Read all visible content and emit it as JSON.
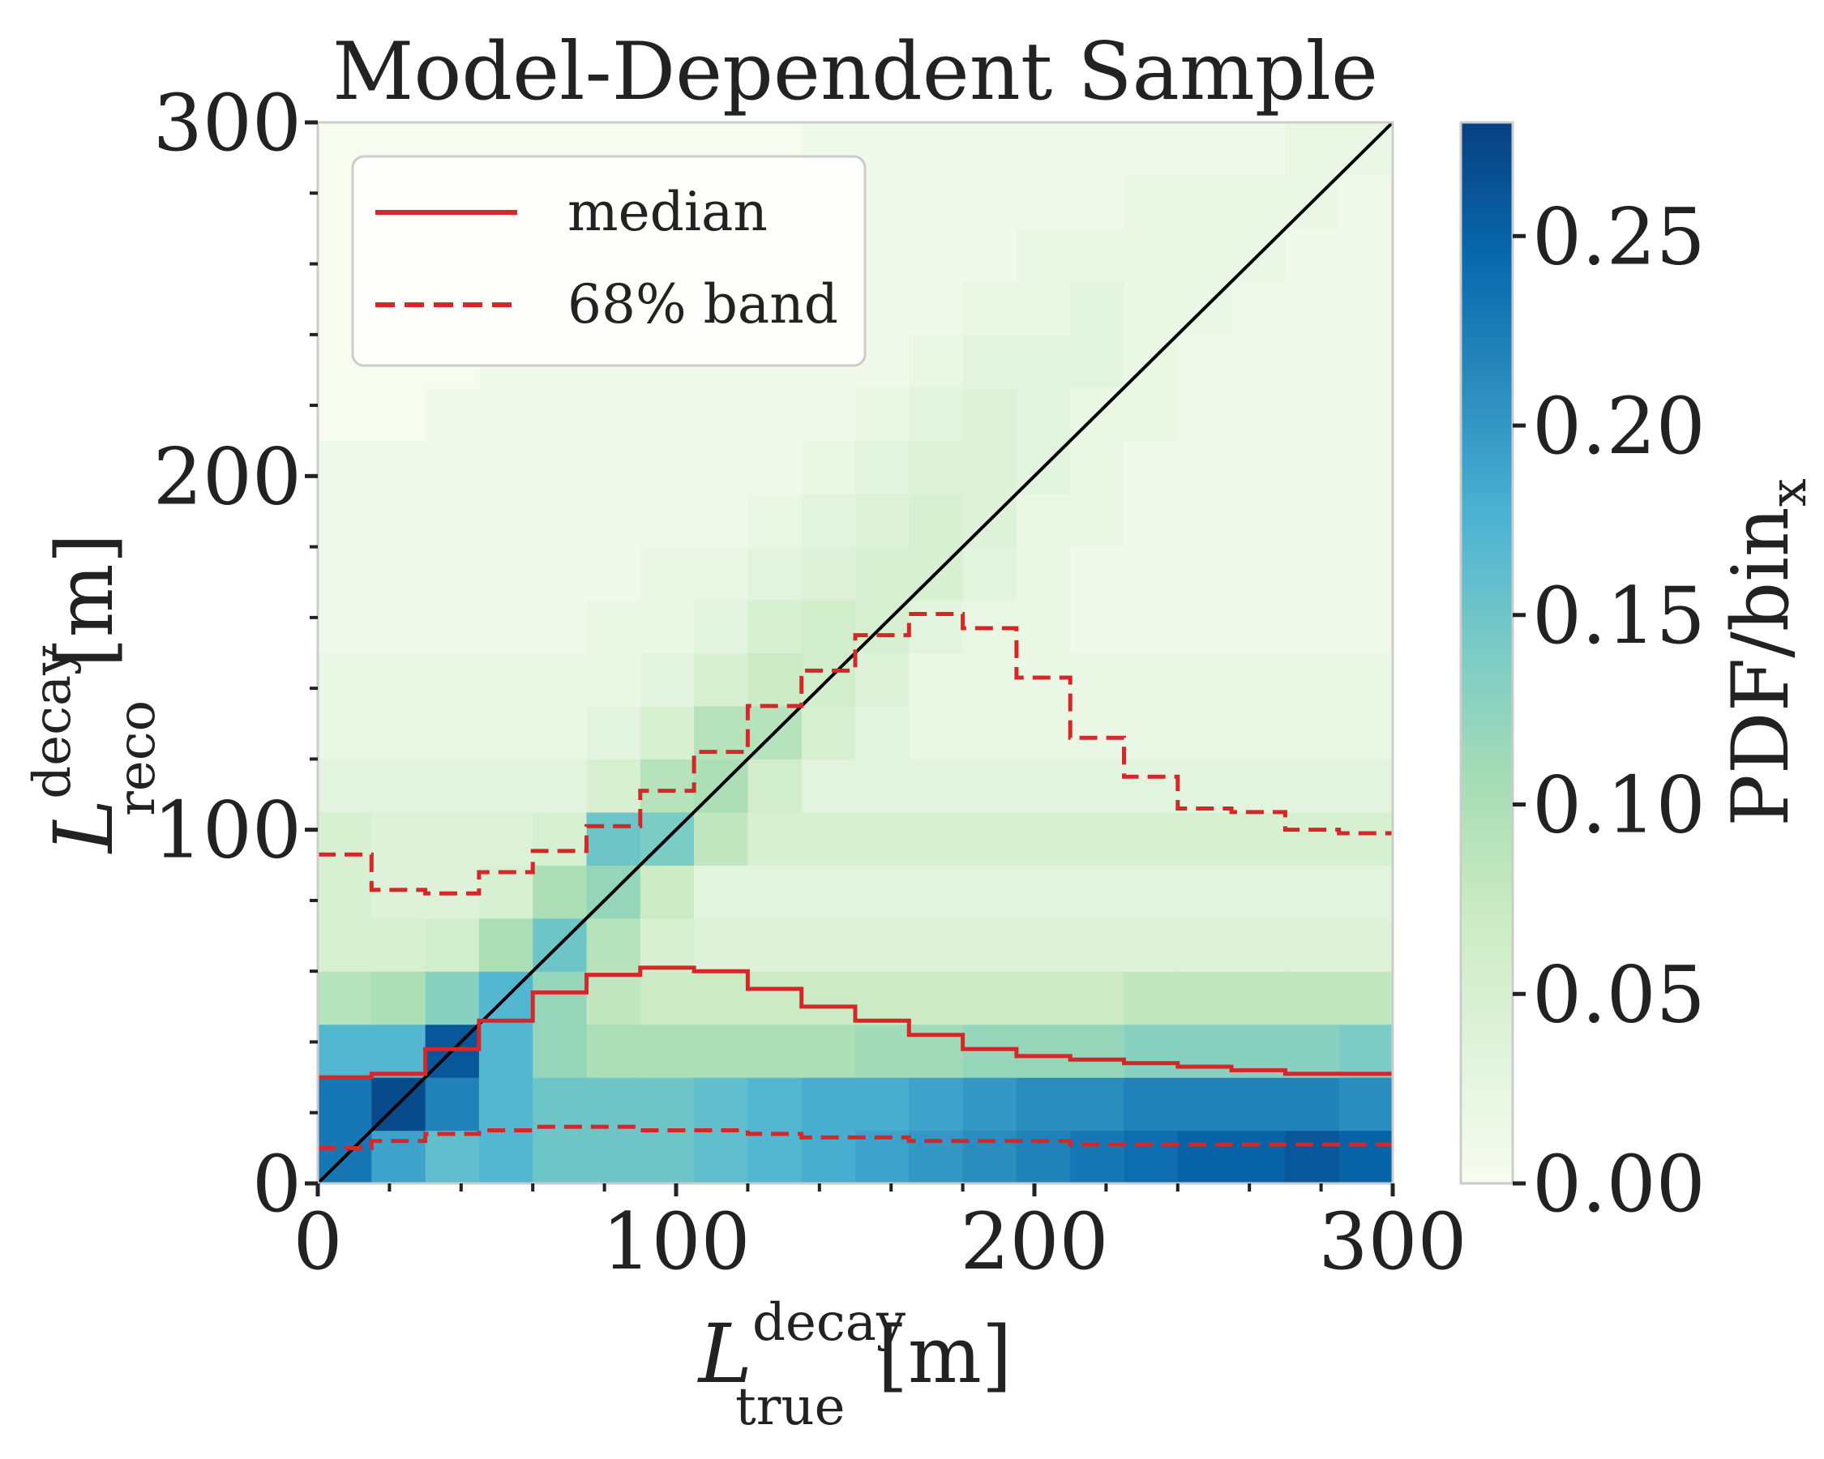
{
  "chart_data": {
    "type": "heatmap",
    "title": "Model-Dependent Sample",
    "xlabel": {
      "main": "L",
      "sup": "decay",
      "sub": "true",
      "unit": "[m]"
    },
    "ylabel": {
      "main": "L",
      "sup": "decay",
      "sub": "reco",
      "unit": "[m]"
    },
    "colorbar_label": {
      "main": "PDF/bin",
      "sub": "x"
    },
    "colormap": "GnBu",
    "xlim": [
      0,
      300
    ],
    "ylim": [
      0,
      300
    ],
    "clim": [
      0,
      0.28
    ],
    "x_ticks": [
      "0",
      "100",
      "200",
      "300"
    ],
    "y_ticks": [
      "0",
      "100",
      "200",
      "300"
    ],
    "colorbar_ticks": [
      "0.00",
      "0.05",
      "0.10",
      "0.15",
      "0.20",
      "0.25"
    ],
    "x_bin_edges": [
      0,
      15,
      30,
      45,
      60,
      75,
      90,
      105,
      120,
      135,
      150,
      165,
      180,
      195,
      210,
      225,
      240,
      255,
      270,
      285,
      300
    ],
    "y_bin_edges": [
      0,
      15,
      30,
      45,
      60,
      75,
      90,
      105,
      120,
      135,
      150,
      165,
      180,
      195,
      210,
      225,
      240,
      255,
      270,
      285,
      300
    ],
    "z": [
      [
        0.23,
        0.19,
        0.16,
        0.17,
        0.15,
        0.15,
        0.15,
        0.16,
        0.17,
        0.18,
        0.19,
        0.2,
        0.21,
        0.22,
        0.23,
        0.24,
        0.25,
        0.25,
        0.26,
        0.25
      ],
      [
        0.23,
        0.27,
        0.22,
        0.17,
        0.15,
        0.15,
        0.15,
        0.16,
        0.17,
        0.18,
        0.18,
        0.19,
        0.2,
        0.21,
        0.21,
        0.22,
        0.22,
        0.22,
        0.22,
        0.21
      ],
      [
        0.17,
        0.17,
        0.26,
        0.17,
        0.12,
        0.1,
        0.1,
        0.1,
        0.1,
        0.1,
        0.11,
        0.11,
        0.12,
        0.12,
        0.12,
        0.13,
        0.13,
        0.13,
        0.13,
        0.14
      ],
      [
        0.09,
        0.1,
        0.13,
        0.17,
        0.12,
        0.08,
        0.07,
        0.07,
        0.07,
        0.07,
        0.07,
        0.07,
        0.07,
        0.07,
        0.07,
        0.08,
        0.08,
        0.08,
        0.08,
        0.08
      ],
      [
        0.05,
        0.05,
        0.06,
        0.1,
        0.15,
        0.09,
        0.05,
        0.04,
        0.04,
        0.04,
        0.04,
        0.04,
        0.04,
        0.04,
        0.04,
        0.04,
        0.04,
        0.04,
        0.04,
        0.04
      ],
      [
        0.05,
        0.04,
        0.04,
        0.05,
        0.1,
        0.12,
        0.07,
        0.03,
        0.03,
        0.03,
        0.03,
        0.03,
        0.03,
        0.03,
        0.03,
        0.03,
        0.03,
        0.03,
        0.03,
        0.03
      ],
      [
        0.05,
        0.04,
        0.04,
        0.04,
        0.05,
        0.15,
        0.14,
        0.08,
        0.05,
        0.05,
        0.05,
        0.05,
        0.05,
        0.05,
        0.05,
        0.05,
        0.05,
        0.05,
        0.05,
        0.05
      ],
      [
        0.03,
        0.03,
        0.03,
        0.03,
        0.03,
        0.05,
        0.09,
        0.1,
        0.06,
        0.03,
        0.03,
        0.03,
        0.03,
        0.03,
        0.03,
        0.03,
        0.03,
        0.03,
        0.03,
        0.03
      ],
      [
        0.02,
        0.02,
        0.02,
        0.02,
        0.02,
        0.03,
        0.05,
        0.09,
        0.09,
        0.05,
        0.03,
        0.02,
        0.02,
        0.02,
        0.02,
        0.02,
        0.02,
        0.02,
        0.02,
        0.02
      ],
      [
        0.02,
        0.02,
        0.02,
        0.02,
        0.02,
        0.02,
        0.03,
        0.05,
        0.07,
        0.06,
        0.04,
        0.02,
        0.02,
        0.02,
        0.02,
        0.02,
        0.02,
        0.02,
        0.02,
        0.02
      ],
      [
        0.01,
        0.01,
        0.01,
        0.01,
        0.01,
        0.02,
        0.02,
        0.03,
        0.05,
        0.06,
        0.05,
        0.03,
        0.02,
        0.02,
        0.01,
        0.01,
        0.01,
        0.01,
        0.01,
        0.01
      ],
      [
        0.01,
        0.01,
        0.01,
        0.01,
        0.01,
        0.01,
        0.02,
        0.02,
        0.03,
        0.04,
        0.05,
        0.05,
        0.03,
        0.02,
        0.01,
        0.01,
        0.01,
        0.01,
        0.01,
        0.01
      ],
      [
        0.01,
        0.01,
        0.01,
        0.01,
        0.01,
        0.01,
        0.01,
        0.01,
        0.02,
        0.03,
        0.04,
        0.05,
        0.04,
        0.02,
        0.02,
        0.01,
        0.01,
        0.01,
        0.01,
        0.01
      ],
      [
        0.01,
        0.01,
        0.01,
        0.01,
        0.01,
        0.01,
        0.01,
        0.01,
        0.01,
        0.02,
        0.03,
        0.04,
        0.04,
        0.03,
        0.02,
        0.01,
        0.01,
        0.01,
        0.01,
        0.01
      ],
      [
        0.0,
        0.0,
        0.01,
        0.01,
        0.01,
        0.01,
        0.01,
        0.01,
        0.01,
        0.01,
        0.02,
        0.03,
        0.04,
        0.03,
        0.02,
        0.02,
        0.01,
        0.01,
        0.01,
        0.01
      ],
      [
        0.0,
        0.0,
        0.0,
        0.01,
        0.01,
        0.01,
        0.01,
        0.01,
        0.01,
        0.01,
        0.01,
        0.02,
        0.03,
        0.03,
        0.03,
        0.02,
        0.01,
        0.01,
        0.01,
        0.01
      ],
      [
        0.0,
        0.0,
        0.0,
        0.0,
        0.01,
        0.01,
        0.01,
        0.01,
        0.01,
        0.01,
        0.01,
        0.01,
        0.02,
        0.02,
        0.03,
        0.02,
        0.02,
        0.01,
        0.01,
        0.01
      ],
      [
        0.0,
        0.0,
        0.0,
        0.0,
        0.0,
        0.01,
        0.01,
        0.01,
        0.01,
        0.01,
        0.01,
        0.01,
        0.01,
        0.02,
        0.02,
        0.02,
        0.02,
        0.02,
        0.01,
        0.01
      ],
      [
        0.0,
        0.0,
        0.0,
        0.0,
        0.0,
        0.0,
        0.0,
        0.01,
        0.01,
        0.01,
        0.01,
        0.01,
        0.01,
        0.01,
        0.01,
        0.02,
        0.02,
        0.02,
        0.02,
        0.01
      ],
      [
        0.0,
        0.0,
        0.0,
        0.0,
        0.0,
        0.0,
        0.0,
        0.0,
        0.0,
        0.01,
        0.01,
        0.01,
        0.01,
        0.01,
        0.01,
        0.01,
        0.01,
        0.01,
        0.02,
        0.02
      ]
    ],
    "series": [
      {
        "name": "median",
        "style": "solid",
        "color": "#d62728",
        "values": [
          30,
          31,
          38,
          46,
          54,
          59,
          61,
          60,
          55,
          50,
          46,
          42,
          38,
          36,
          35,
          34,
          33,
          32,
          31,
          31
        ]
      },
      {
        "name": "68% band",
        "style": "dashed",
        "color": "#d62728",
        "values_upper": [
          93,
          83,
          82,
          88,
          94,
          101,
          111,
          122,
          135,
          145,
          155,
          161,
          157,
          143,
          126,
          115,
          106,
          105,
          100,
          99
        ],
        "values_lower": [
          10,
          12,
          14,
          15,
          16,
          16,
          15,
          15,
          14,
          13,
          13,
          12,
          12,
          12,
          11,
          11,
          11,
          11,
          11,
          11
        ]
      }
    ],
    "diagonal": {
      "from": [
        0,
        0
      ],
      "to": [
        300,
        300
      ],
      "color": "#000000"
    },
    "legend": {
      "position": "top-left"
    }
  }
}
